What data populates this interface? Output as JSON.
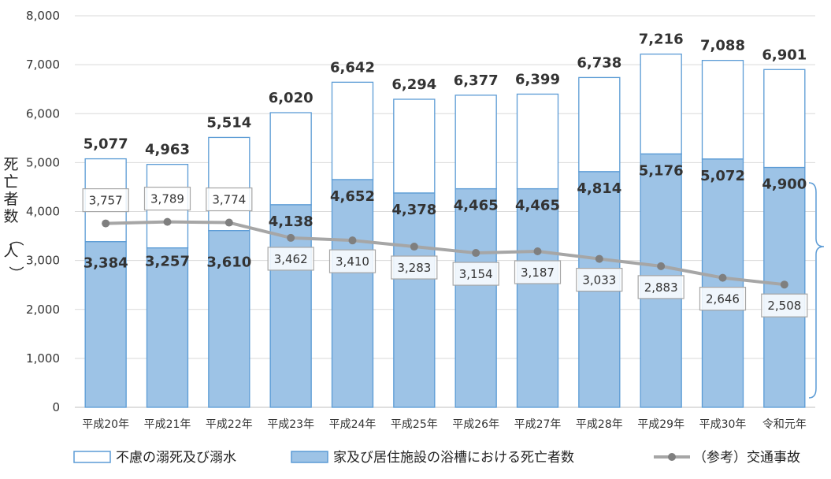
{
  "chart_data": {
    "type": "bar",
    "stacked": true,
    "ylabel": "死亡者数（人）",
    "ylim": [
      0,
      8000
    ],
    "yticks": [
      "0",
      "1,000",
      "2,000",
      "3,000",
      "4,000",
      "5,000",
      "6,000",
      "7,000",
      "8,000"
    ],
    "categories": [
      "平成20年",
      "平成21年",
      "平成22年",
      "平成23年",
      "平成24年",
      "平成25年",
      "平成26年",
      "平成27年",
      "平成28年",
      "平成29年",
      "平成30年",
      "令和元年"
    ],
    "totals": [
      5077,
      4963,
      5514,
      6020,
      6642,
      6294,
      6377,
      6399,
      6738,
      7216,
      7088,
      6901
    ],
    "total_labels": [
      "5,077",
      "4,963",
      "5,514",
      "6,020",
      "6,642",
      "6,294",
      "6,377",
      "6,399",
      "6,738",
      "7,216",
      "7,088",
      "6,901"
    ],
    "series": [
      {
        "name": "家及び居住施設の浴槽における死亡者数",
        "kind": "bar",
        "color": "#9dc3e6",
        "values": [
          3384,
          3257,
          3610,
          4138,
          4652,
          4378,
          4465,
          4465,
          4814,
          5176,
          5072,
          4900
        ],
        "labels": [
          "3,384",
          "3,257",
          "3,610",
          "4,138",
          "4,652",
          "4,378",
          "4,465",
          "4,465",
          "4,814",
          "5,176",
          "5,072",
          "4,900"
        ]
      },
      {
        "name": "不慮の溺死及び溺水",
        "kind": "bar",
        "color": "#ffffff",
        "values": [
          1693,
          1706,
          1904,
          1882,
          1990,
          1916,
          1912,
          1934,
          1924,
          2040,
          2016,
          2001
        ]
      },
      {
        "name": "（参考）交通事故",
        "kind": "line",
        "color": "#a6a6a6",
        "values": [
          3757,
          3789,
          3774,
          3462,
          3410,
          3283,
          3154,
          3187,
          3033,
          2883,
          2646,
          2508
        ],
        "labels": [
          "3,757",
          "3,789",
          "3,774",
          "3,462",
          "3,410",
          "3,283",
          "3,154",
          "3,187",
          "3,033",
          "2,883",
          "2,646",
          "2,508"
        ]
      }
    ],
    "legend_position": "bottom",
    "grid": true
  },
  "colors": {
    "bar_edge": "#5b9bd5",
    "bath_fill": "#9dc3e6",
    "line": "#a6a6a6",
    "marker": "#7f7f7f",
    "grid": "#d9d9d9"
  },
  "legend": {
    "item_drowning": "不慮の溺死及び溺水",
    "item_bath": "家及び居住施設の浴槽における死亡者数",
    "item_traffic": "（参考）交通事故"
  }
}
